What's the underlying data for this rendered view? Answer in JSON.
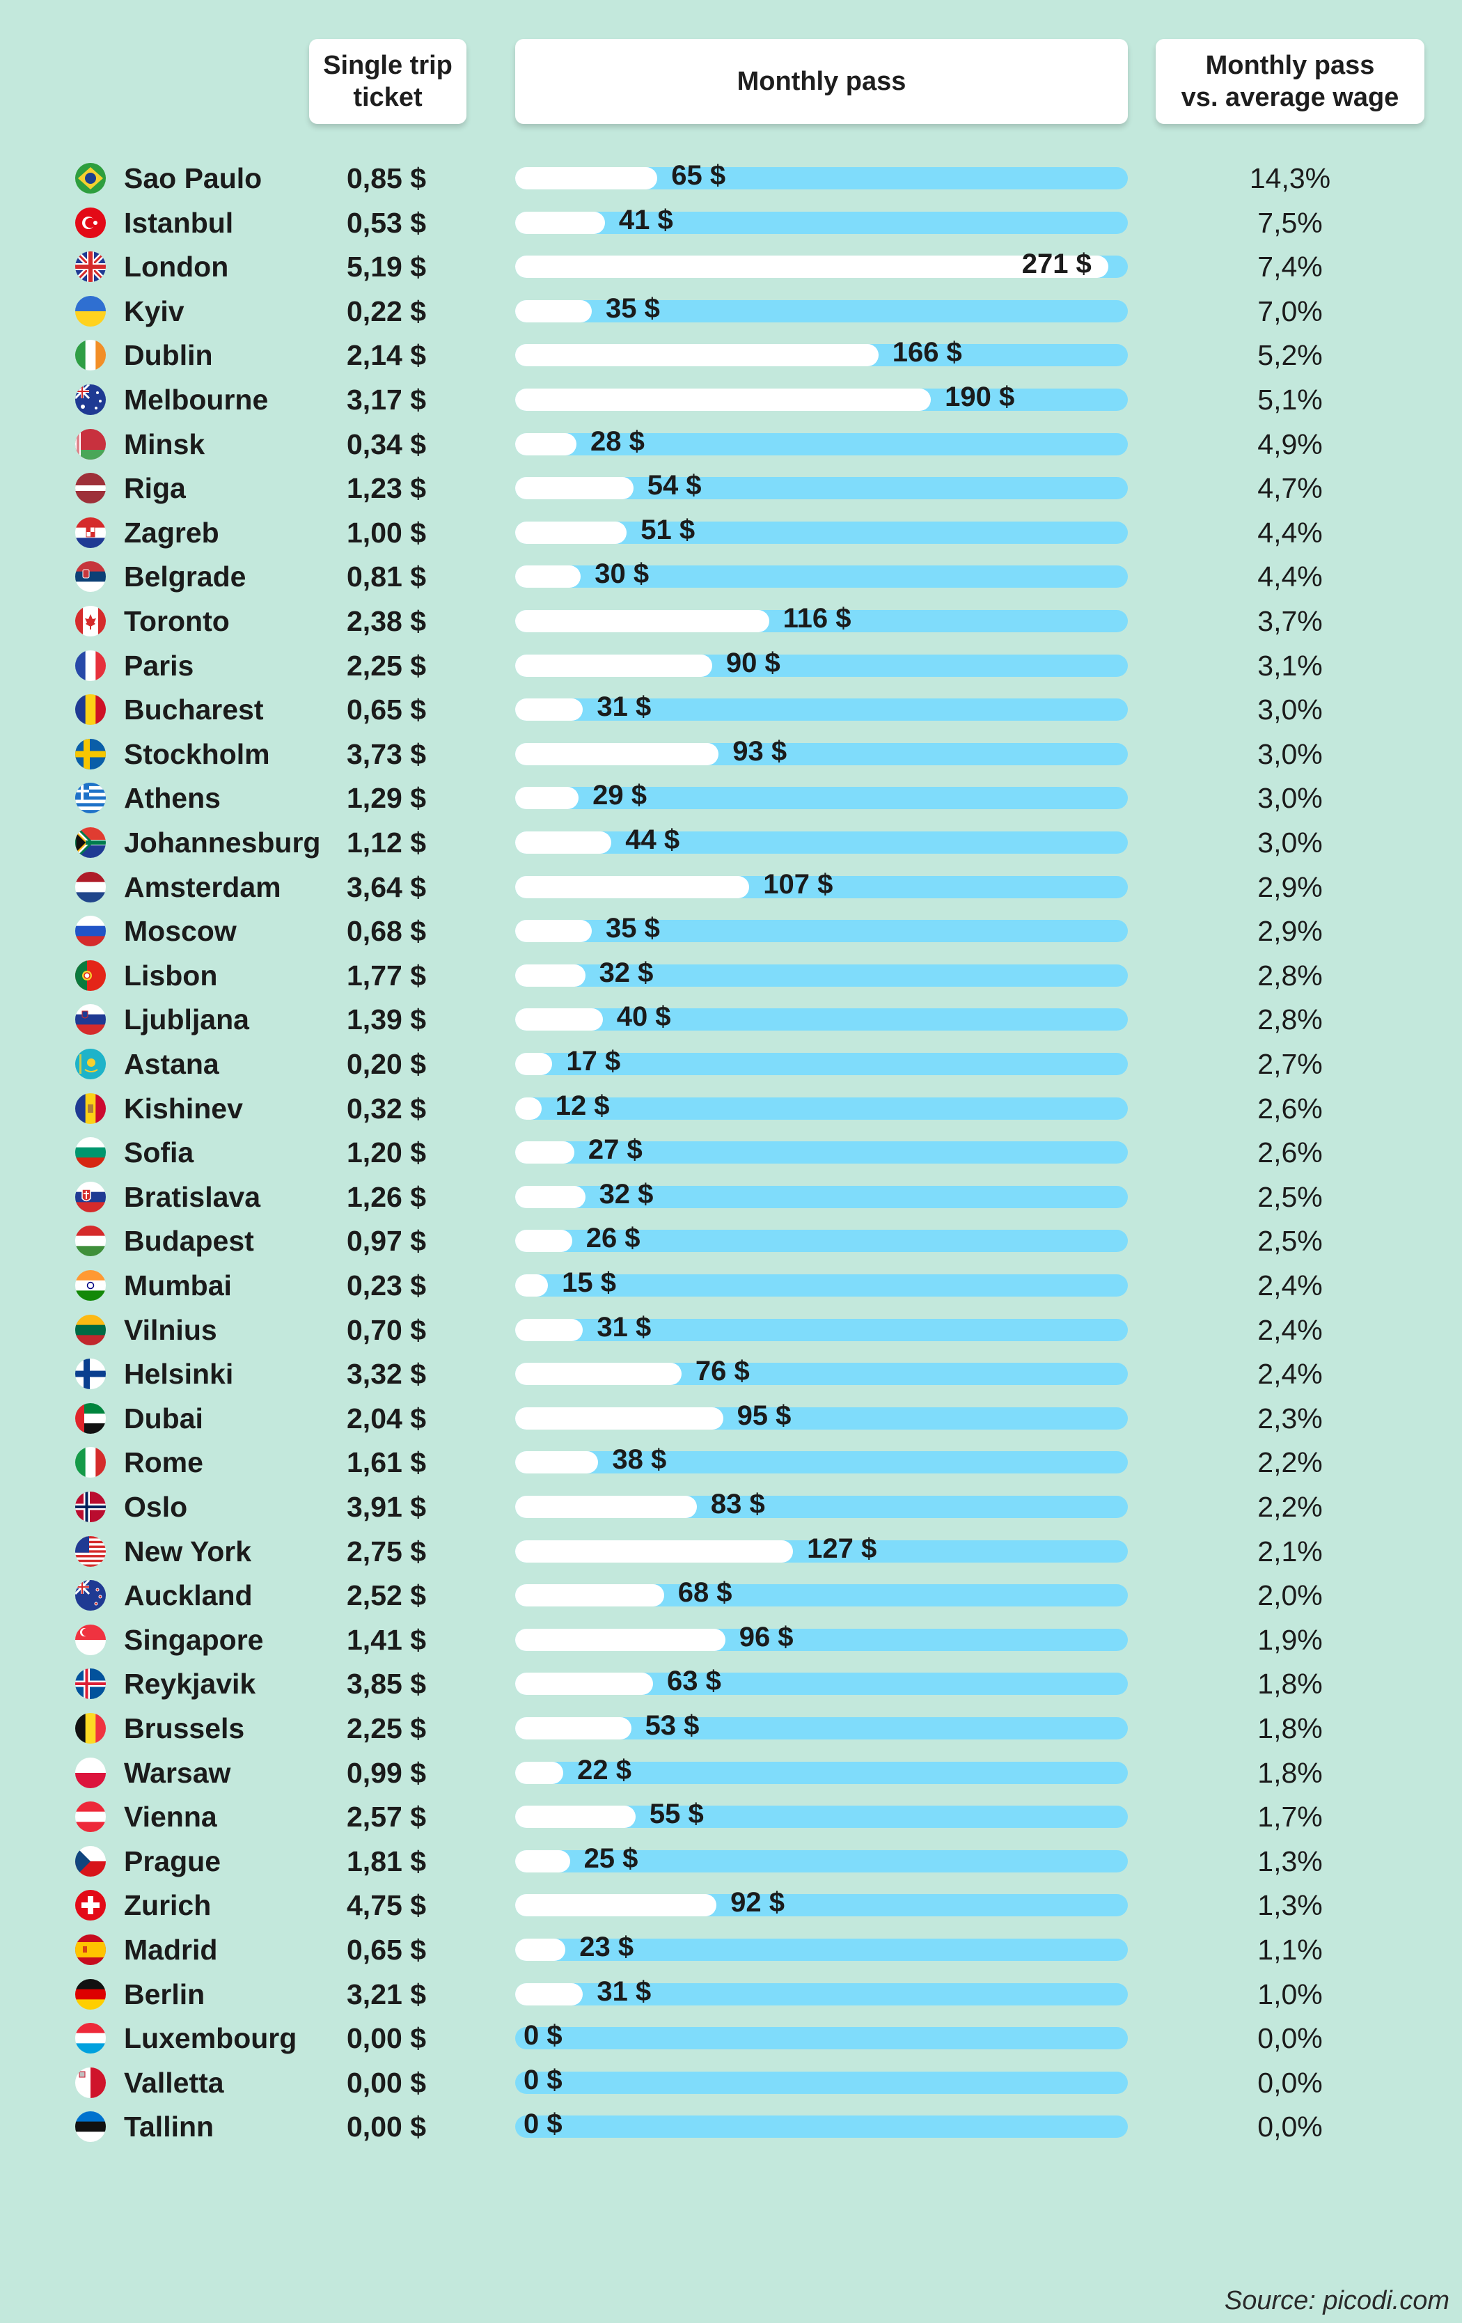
{
  "headers": {
    "single": "Single trip\nticket",
    "monthly": "Monthly pass",
    "wage": "Monthly pass\nvs. average wage"
  },
  "source": "Source: picodi.com",
  "colors": {
    "background": "#c3e8dc",
    "track": "#7fdcfb",
    "fill": "#ffffff"
  },
  "chart_data": {
    "type": "bar",
    "categories": [
      "Sao Paulo",
      "Istanbul",
      "London",
      "Kyiv",
      "Dublin",
      "Melbourne",
      "Minsk",
      "Riga",
      "Zagreb",
      "Belgrade",
      "Toronto",
      "Paris",
      "Bucharest",
      "Stockholm",
      "Athens",
      "Johannesburg",
      "Amsterdam",
      "Moscow",
      "Lisbon",
      "Ljubljana",
      "Astana",
      "Kishinev",
      "Sofia",
      "Bratislava",
      "Budapest",
      "Mumbai",
      "Vilnius",
      "Helsinki",
      "Dubai",
      "Rome",
      "Oslo",
      "New York",
      "Auckland",
      "Singapore",
      "Reykjavik",
      "Brussels",
      "Warsaw",
      "Vienna",
      "Prague",
      "Zurich",
      "Madrid",
      "Berlin",
      "Luxembourg",
      "Valletta",
      "Tallinn"
    ],
    "values": [
      65,
      41,
      271,
      35,
      166,
      190,
      28,
      54,
      51,
      30,
      116,
      90,
      31,
      93,
      29,
      44,
      107,
      35,
      32,
      40,
      17,
      12,
      27,
      32,
      26,
      15,
      31,
      76,
      95,
      38,
      83,
      127,
      68,
      96,
      63,
      53,
      22,
      55,
      25,
      92,
      23,
      31,
      0,
      0,
      0
    ],
    "ylim": [
      0,
      280
    ]
  },
  "rows": [
    {
      "city": "Sao Paulo",
      "flag": "brazil",
      "single": "0,85 $",
      "monthly": "65 $",
      "wage": "14,3%"
    },
    {
      "city": "Istanbul",
      "flag": "turkey",
      "single": "0,53 $",
      "monthly": "41 $",
      "wage": "7,5%"
    },
    {
      "city": "London",
      "flag": "uk",
      "single": "5,19 $",
      "monthly": "271 $",
      "wage": "7,4%"
    },
    {
      "city": "Kyiv",
      "flag": "ukraine",
      "single": "0,22 $",
      "monthly": "35 $",
      "wage": "7,0%"
    },
    {
      "city": "Dublin",
      "flag": "ireland",
      "single": "2,14 $",
      "monthly": "166 $",
      "wage": "5,2%"
    },
    {
      "city": "Melbourne",
      "flag": "australia",
      "single": "3,17 $",
      "monthly": "190 $",
      "wage": "5,1%"
    },
    {
      "city": "Minsk",
      "flag": "belarus",
      "single": "0,34 $",
      "monthly": "28 $",
      "wage": "4,9%"
    },
    {
      "city": "Riga",
      "flag": "latvia",
      "single": "1,23 $",
      "monthly": "54 $",
      "wage": "4,7%"
    },
    {
      "city": "Zagreb",
      "flag": "croatia",
      "single": "1,00 $",
      "monthly": "51 $",
      "wage": "4,4%"
    },
    {
      "city": "Belgrade",
      "flag": "serbia",
      "single": "0,81 $",
      "monthly": "30 $",
      "wage": "4,4%"
    },
    {
      "city": "Toronto",
      "flag": "canada",
      "single": "2,38 $",
      "monthly": "116 $",
      "wage": "3,7%"
    },
    {
      "city": "Paris",
      "flag": "france",
      "single": "2,25 $",
      "monthly": "90 $",
      "wage": "3,1%"
    },
    {
      "city": "Bucharest",
      "flag": "romania",
      "single": "0,65 $",
      "monthly": "31 $",
      "wage": "3,0%"
    },
    {
      "city": "Stockholm",
      "flag": "sweden",
      "single": "3,73 $",
      "monthly": "93 $",
      "wage": "3,0%"
    },
    {
      "city": "Athens",
      "flag": "greece",
      "single": "1,29 $",
      "monthly": "29 $",
      "wage": "3,0%"
    },
    {
      "city": "Johannesburg",
      "flag": "south-africa",
      "single": "1,12 $",
      "monthly": "44 $",
      "wage": "3,0%"
    },
    {
      "city": "Amsterdam",
      "flag": "netherlands",
      "single": "3,64 $",
      "monthly": "107 $",
      "wage": "2,9%"
    },
    {
      "city": "Moscow",
      "flag": "russia",
      "single": "0,68 $",
      "monthly": "35 $",
      "wage": "2,9%"
    },
    {
      "city": "Lisbon",
      "flag": "portugal",
      "single": "1,77 $",
      "monthly": "32 $",
      "wage": "2,8%"
    },
    {
      "city": "Ljubljana",
      "flag": "slovenia",
      "single": "1,39 $",
      "monthly": "40 $",
      "wage": "2,8%"
    },
    {
      "city": "Astana",
      "flag": "kazakhstan",
      "single": "0,20 $",
      "monthly": "17 $",
      "wage": "2,7%"
    },
    {
      "city": "Kishinev",
      "flag": "moldova",
      "single": "0,32 $",
      "monthly": "12 $",
      "wage": "2,6%"
    },
    {
      "city": "Sofia",
      "flag": "bulgaria",
      "single": "1,20 $",
      "monthly": "27 $",
      "wage": "2,6%"
    },
    {
      "city": "Bratislava",
      "flag": "slovakia",
      "single": "1,26 $",
      "monthly": "32 $",
      "wage": "2,5%"
    },
    {
      "city": "Budapest",
      "flag": "hungary",
      "single": "0,97 $",
      "monthly": "26 $",
      "wage": "2,5%"
    },
    {
      "city": "Mumbai",
      "flag": "india",
      "single": "0,23 $",
      "monthly": "15 $",
      "wage": "2,4%"
    },
    {
      "city": "Vilnius",
      "flag": "lithuania",
      "single": "0,70 $",
      "monthly": "31 $",
      "wage": "2,4%"
    },
    {
      "city": "Helsinki",
      "flag": "finland",
      "single": "3,32 $",
      "monthly": "76 $",
      "wage": "2,4%"
    },
    {
      "city": "Dubai",
      "flag": "uae",
      "single": "2,04 $",
      "monthly": "95 $",
      "wage": "2,3%"
    },
    {
      "city": "Rome",
      "flag": "italy",
      "single": "1,61 $",
      "monthly": "38 $",
      "wage": "2,2%"
    },
    {
      "city": "Oslo",
      "flag": "norway",
      "single": "3,91 $",
      "monthly": "83 $",
      "wage": "2,2%"
    },
    {
      "city": "New York",
      "flag": "usa",
      "single": "2,75 $",
      "monthly": "127 $",
      "wage": "2,1%"
    },
    {
      "city": "Auckland",
      "flag": "new-zealand",
      "single": "2,52 $",
      "monthly": "68 $",
      "wage": "2,0%"
    },
    {
      "city": "Singapore",
      "flag": "singapore",
      "single": "1,41 $",
      "monthly": "96 $",
      "wage": "1,9%"
    },
    {
      "city": "Reykjavik",
      "flag": "iceland",
      "single": "3,85 $",
      "monthly": "63 $",
      "wage": "1,8%"
    },
    {
      "city": "Brussels",
      "flag": "belgium",
      "single": "2,25 $",
      "monthly": "53 $",
      "wage": "1,8%"
    },
    {
      "city": "Warsaw",
      "flag": "poland",
      "single": "0,99 $",
      "monthly": "22 $",
      "wage": "1,8%"
    },
    {
      "city": "Vienna",
      "flag": "austria",
      "single": "2,57 $",
      "monthly": "55 $",
      "wage": "1,7%"
    },
    {
      "city": "Prague",
      "flag": "czechia",
      "single": "1,81 $",
      "monthly": "25 $",
      "wage": "1,3%"
    },
    {
      "city": "Zurich",
      "flag": "switzerland",
      "single": "4,75 $",
      "monthly": "92 $",
      "wage": "1,3%"
    },
    {
      "city": "Madrid",
      "flag": "spain",
      "single": "0,65 $",
      "monthly": "23 $",
      "wage": "1,1%"
    },
    {
      "city": "Berlin",
      "flag": "germany",
      "single": "3,21 $",
      "monthly": "31 $",
      "wage": "1,0%"
    },
    {
      "city": "Luxembourg",
      "flag": "luxembourg",
      "single": "0,00 $",
      "monthly": "0 $",
      "wage": "0,0%"
    },
    {
      "city": "Valletta",
      "flag": "malta",
      "single": "0,00 $",
      "monthly": "0 $",
      "wage": "0,0%"
    },
    {
      "city": "Tallinn",
      "flag": "estonia",
      "single": "0,00 $",
      "monthly": "0 $",
      "wage": "0,0%"
    }
  ]
}
